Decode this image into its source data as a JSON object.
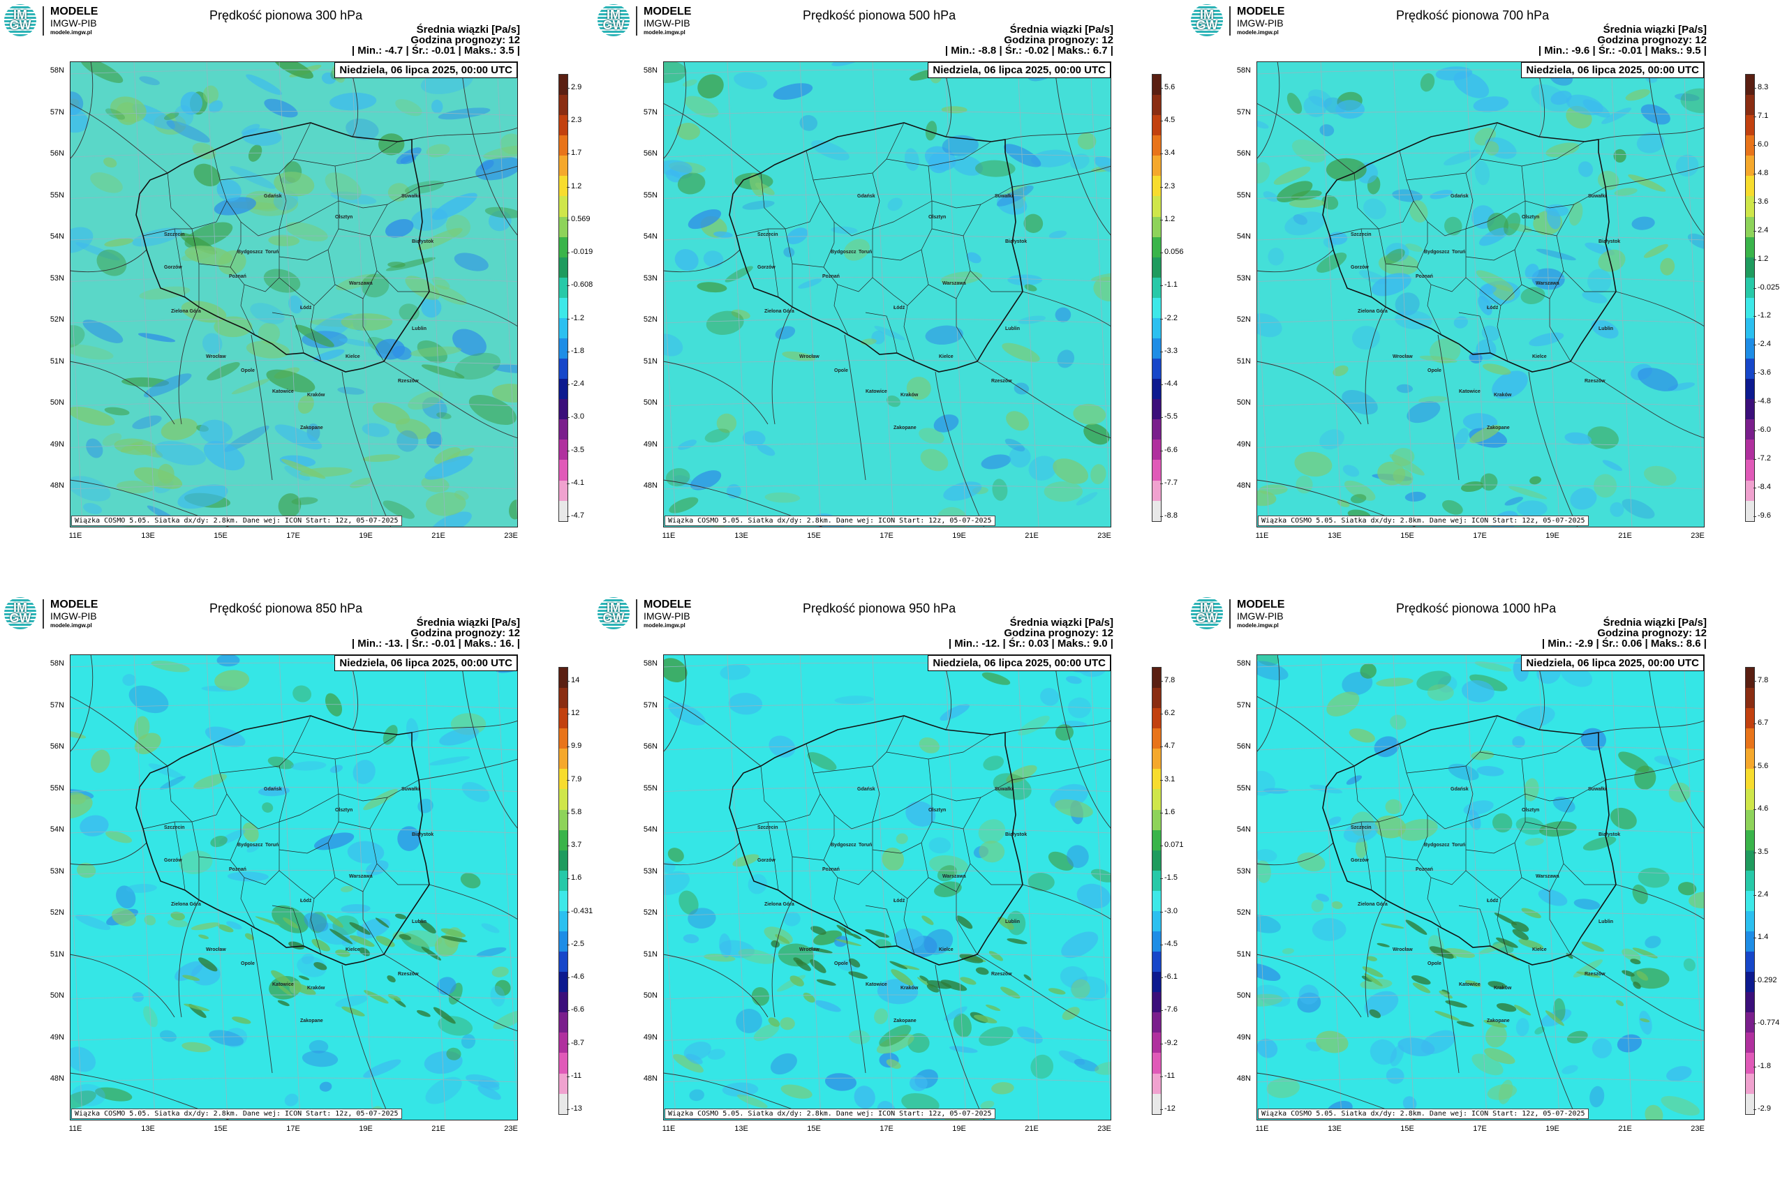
{
  "logo": {
    "letters": "IM GW",
    "line1": "MODELE",
    "line2": "IMGW-PIB",
    "line3": "modele.imgw.pl"
  },
  "common": {
    "unit_line": "Średnia wiązki [Pa/s]",
    "forecast_line": "Godzina prognozy: 12",
    "date_line": "Niedziela, 06 lipca 2025, 00:00 UTC",
    "footer": "Wiązka COSMO 5.05. Siatka dx/dy: 2.8km. Dane wej: ICON Start: 12z, 05-07-2025",
    "lat_labels": [
      "58N",
      "57N",
      "56N",
      "55N",
      "54N",
      "53N",
      "52N",
      "51N",
      "50N",
      "49N",
      "48N"
    ],
    "lon_labels": [
      "11E",
      "13E",
      "15E",
      "17E",
      "19E",
      "21E",
      "23E"
    ],
    "cities": [
      "Gdańsk",
      "Olsztyn",
      "Szczecin",
      "Białystok",
      "Bydgoszcz",
      "Toruń",
      "Gorzów",
      "Poznań",
      "Warszawa",
      "Zielona Góra",
      "Łódź",
      "Lublin",
      "Wrocław",
      "Opole",
      "Kielce",
      "Rzeszów",
      "Katowice",
      "Kraków",
      "Zakopane",
      "Suwałki"
    ]
  },
  "colors": {
    "background": "#ffffff",
    "sea_base": "#3de8e8",
    "land_base": "#48e6d8",
    "green": "#6cc87c",
    "blue": "#38b4f0"
  },
  "panels": [
    {
      "title": "Prędkość pionowa 300 hPa",
      "min": "-4.7",
      "avg": "-0.01",
      "max": "3.5",
      "colorbar_labels": [
        "2.9",
        "2.3",
        "1.7",
        "1.2",
        "0.569",
        "-0.019",
        "-0.608",
        "-1.2",
        "-1.8",
        "-2.4",
        "-3.0",
        "-3.5",
        "-4.1",
        "-4.7"
      ]
    },
    {
      "title": "Prędkość pionowa 500 hPa",
      "min": "-8.8",
      "avg": "-0.02",
      "max": "6.7",
      "colorbar_labels": [
        "5.6",
        "4.5",
        "3.4",
        "2.3",
        "1.2",
        "0.056",
        "-1.1",
        "-2.2",
        "-3.3",
        "-4.4",
        "-5.5",
        "-6.6",
        "-7.7",
        "-8.8"
      ]
    },
    {
      "title": "Prędkość pionowa 700 hPa",
      "min": "-9.6",
      "avg": "-0.01",
      "max": "9.5",
      "colorbar_labels": [
        "8.3",
        "7.1",
        "6.0",
        "4.8",
        "3.6",
        "2.4",
        "1.2",
        "-0.025",
        "-1.2",
        "-2.4",
        "-3.6",
        "-4.8",
        "-6.0",
        "-7.2",
        "-8.4",
        "-9.6"
      ]
    },
    {
      "title": "Prędkość pionowa 850 hPa",
      "min": "-13.",
      "avg": "-0.01",
      "max": "16.",
      "colorbar_labels": [
        "14",
        "12",
        "9.9",
        "7.9",
        "5.8",
        "3.7",
        "1.6",
        "-0.431",
        "-2.5",
        "-4.6",
        "-6.6",
        "-8.7",
        "-11",
        "-13"
      ]
    },
    {
      "title": "Prędkość pionowa 950 hPa",
      "min": "-12.",
      "avg": "0.03",
      "max": "9.0",
      "colorbar_labels": [
        "7.8",
        "6.2",
        "4.7",
        "3.1",
        "1.6",
        "0.071",
        "-1.5",
        "-3.0",
        "-4.5",
        "-6.1",
        "-7.6",
        "-9.2",
        "-11",
        "-12"
      ]
    },
    {
      "title": "Prędkość pionowa 1000 hPa",
      "min": "-2.9",
      "avg": "0.06",
      "max": "8.6",
      "colorbar_labels": [
        "7.8",
        "6.7",
        "5.6",
        "4.6",
        "3.5",
        "2.4",
        "1.4",
        "0.292",
        "-0.774",
        "-1.8",
        "-2.9"
      ]
    }
  ]
}
